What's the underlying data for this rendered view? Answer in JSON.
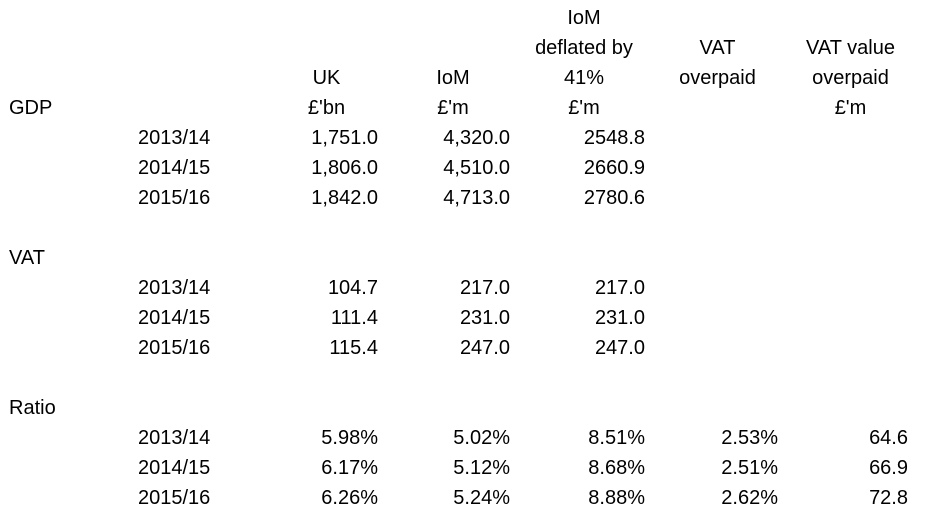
{
  "colors": {
    "text": "#000000",
    "background": "#ffffff"
  },
  "header": {
    "col_uk": {
      "l1": "UK",
      "l2": "£'bn"
    },
    "col_iom": {
      "l1": "IoM",
      "l2": "£'m"
    },
    "col_iom_deflated": {
      "l1": "IoM",
      "l2": "deflated by",
      "l3": "41%",
      "l4": "£'m"
    },
    "col_vat_overpaid": {
      "l1": "VAT",
      "l2": "overpaid"
    },
    "col_vat_value": {
      "l1": "VAT value",
      "l2": "overpaid",
      "l3": "£'m"
    }
  },
  "sections": {
    "gdp": {
      "label": "GDP",
      "rows": [
        {
          "year": "2013/14",
          "uk": "1,751.0",
          "iom": "4,320.0",
          "iom_deflated": "2548.8"
        },
        {
          "year": "2014/15",
          "uk": "1,806.0",
          "iom": "4,510.0",
          "iom_deflated": "2660.9"
        },
        {
          "year": "2015/16",
          "uk": "1,842.0",
          "iom": "4,713.0",
          "iom_deflated": "2780.6"
        }
      ]
    },
    "vat": {
      "label": "VAT",
      "rows": [
        {
          "year": "2013/14",
          "uk": "104.7",
          "iom": "217.0",
          "iom_deflated": "217.0"
        },
        {
          "year": "2014/15",
          "uk": "111.4",
          "iom": "231.0",
          "iom_deflated": "231.0"
        },
        {
          "year": "2015/16",
          "uk": "115.4",
          "iom": "247.0",
          "iom_deflated": "247.0"
        }
      ]
    },
    "ratio": {
      "label": "Ratio",
      "rows": [
        {
          "year": "2013/14",
          "uk": "5.98%",
          "iom": "5.02%",
          "iom_deflated": "8.51%",
          "vat_overpaid": "2.53%",
          "vat_value": "64.6"
        },
        {
          "year": "2014/15",
          "uk": "6.17%",
          "iom": "5.12%",
          "iom_deflated": "8.68%",
          "vat_overpaid": "2.51%",
          "vat_value": "66.9"
        },
        {
          "year": "2015/16",
          "uk": "6.26%",
          "iom": "5.24%",
          "iom_deflated": "8.88%",
          "vat_overpaid": "2.62%",
          "vat_value": "72.8"
        }
      ]
    }
  }
}
